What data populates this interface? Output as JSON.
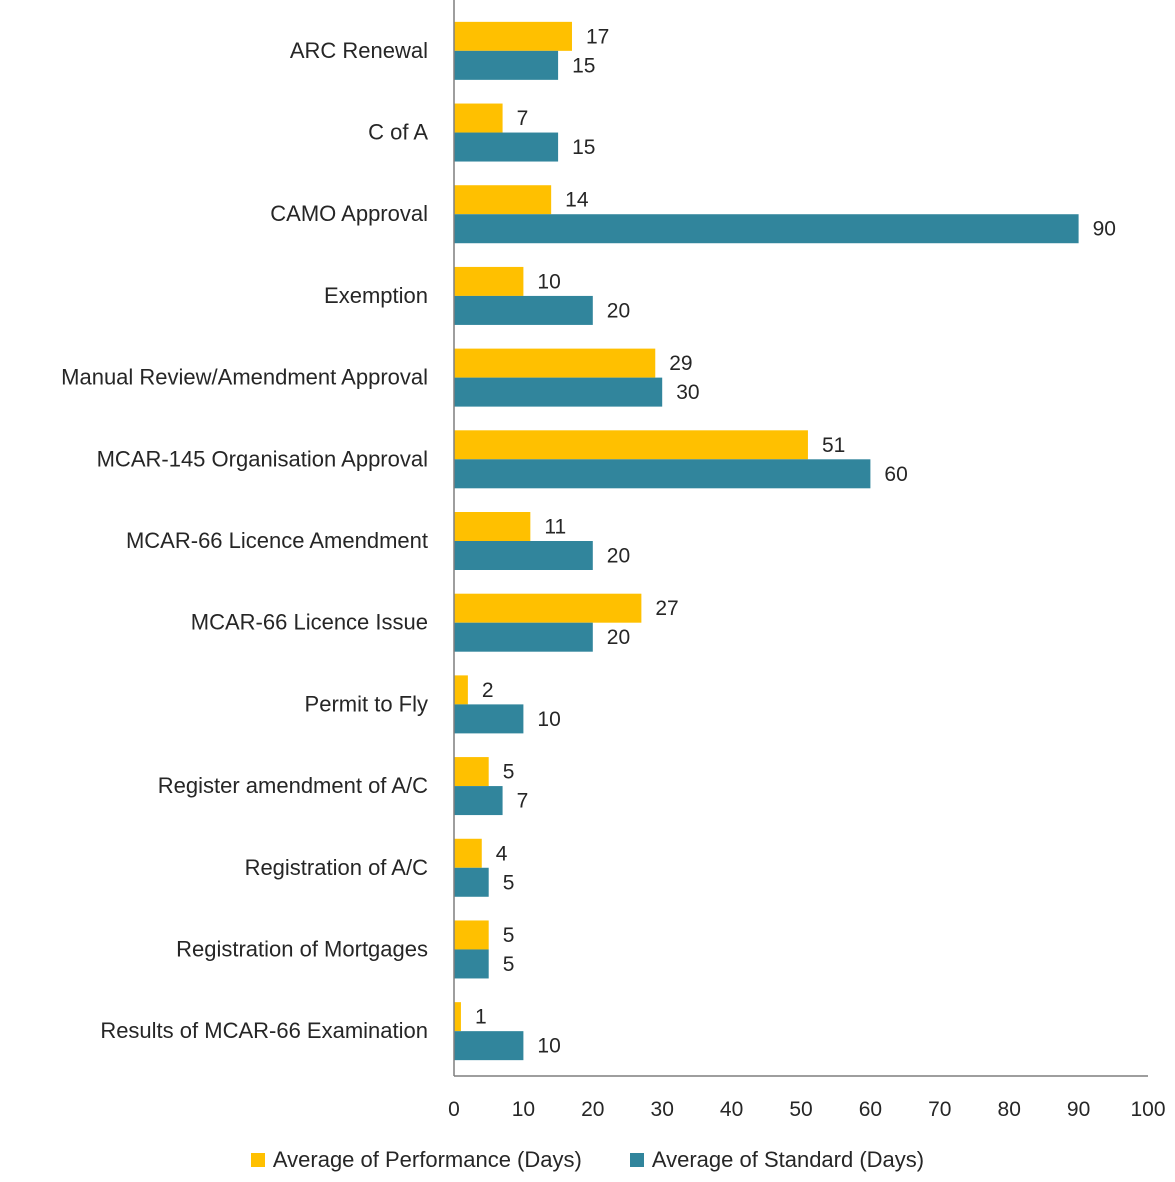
{
  "chart_data": {
    "type": "bar",
    "orientation": "horizontal",
    "categories": [
      "ARC Renewal",
      "C of A",
      "CAMO Approval",
      "Exemption",
      "Manual Review/Amendment Approval",
      "MCAR-145 Organisation Approval",
      "MCAR-66 Licence Amendment",
      "MCAR-66 Licence Issue",
      "Permit to Fly",
      "Register amendment of A/C",
      "Registration of A/C",
      "Registration of Mortgages",
      "Results of MCAR-66 Examination"
    ],
    "series": [
      {
        "name": "Average of Performance (Days)",
        "color": "#FFC000",
        "values": [
          17,
          7,
          14,
          10,
          29,
          51,
          11,
          27,
          2,
          5,
          4,
          5,
          1
        ]
      },
      {
        "name": "Average of Standard (Days)",
        "color": "#31859C",
        "values": [
          15,
          15,
          90,
          20,
          30,
          60,
          20,
          20,
          10,
          7,
          5,
          5,
          10
        ]
      }
    ],
    "xlim": [
      0,
      100
    ],
    "xticks": [
      "0",
      "10",
      "20",
      "30",
      "40",
      "50",
      "60",
      "70",
      "80",
      "90",
      "100"
    ],
    "grid": false,
    "legend_position": "bottom"
  }
}
